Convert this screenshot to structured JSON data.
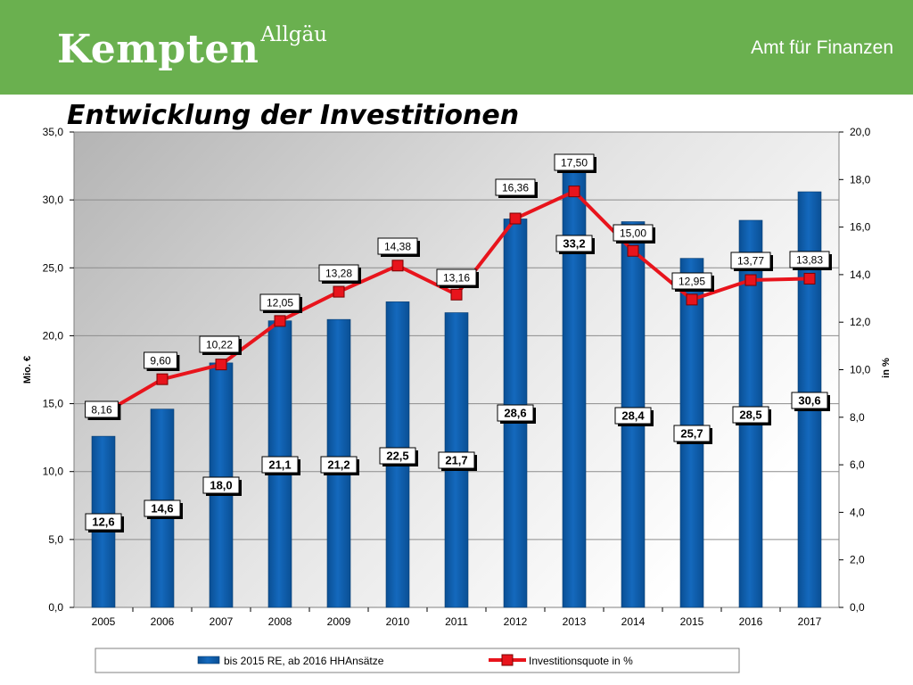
{
  "header": {
    "logo_main": "Kempten",
    "logo_sup": "Allgäu",
    "department": "Amt für Finanzen"
  },
  "colors": {
    "header_bg": "#6ab04f",
    "bar": "#0c5ca8",
    "line": "#e8141c"
  },
  "chart_data": {
    "type": "bar",
    "title": "Entwicklung der Investitionen",
    "categories": [
      "2005",
      "2006",
      "2007",
      "2008",
      "2009",
      "2010",
      "2011",
      "2012",
      "2013",
      "2014",
      "2015",
      "2016",
      "2017"
    ],
    "y_left": {
      "label": "Mio. €",
      "min": 0,
      "max": 35,
      "step": 5,
      "ticks": [
        "0,0",
        "5,0",
        "10,0",
        "15,0",
        "20,0",
        "25,0",
        "30,0",
        "35,0"
      ]
    },
    "y_right": {
      "label": "in %",
      "min": 0,
      "max": 20,
      "step": 2,
      "ticks": [
        "0,0",
        "2,0",
        "4,0",
        "6,0",
        "8,0",
        "10,0",
        "12,0",
        "14,0",
        "16,0",
        "18,0",
        "20,0"
      ]
    },
    "grid": true,
    "legend_position": "bottom",
    "series": [
      {
        "name": "bis 2015 RE, ab 2016 HHAnsätze",
        "kind": "bar",
        "axis": "left",
        "values": [
          12.6,
          14.6,
          18.0,
          21.1,
          21.2,
          22.5,
          21.7,
          28.6,
          33.2,
          28.4,
          25.7,
          28.5,
          30.6
        ],
        "labels": [
          "12,6",
          "14,6",
          "18,0",
          "21,1",
          "21,2",
          "22,5",
          "21,7",
          "28,6",
          "33,2",
          "28,4",
          "25,7",
          "28,5",
          "30,6"
        ]
      },
      {
        "name": "Investitionsquote in %",
        "kind": "line",
        "axis": "right",
        "values": [
          8.16,
          9.6,
          10.22,
          12.05,
          13.28,
          14.38,
          13.16,
          16.36,
          17.5,
          15.0,
          12.95,
          13.77,
          13.83
        ],
        "labels": [
          "8,16",
          "9,60",
          "10,22",
          "12,05",
          "13,28",
          "14,38",
          "13,16",
          "16,36",
          "17,50",
          "15,00",
          "12,95",
          "13,77",
          "13,83"
        ]
      }
    ]
  }
}
